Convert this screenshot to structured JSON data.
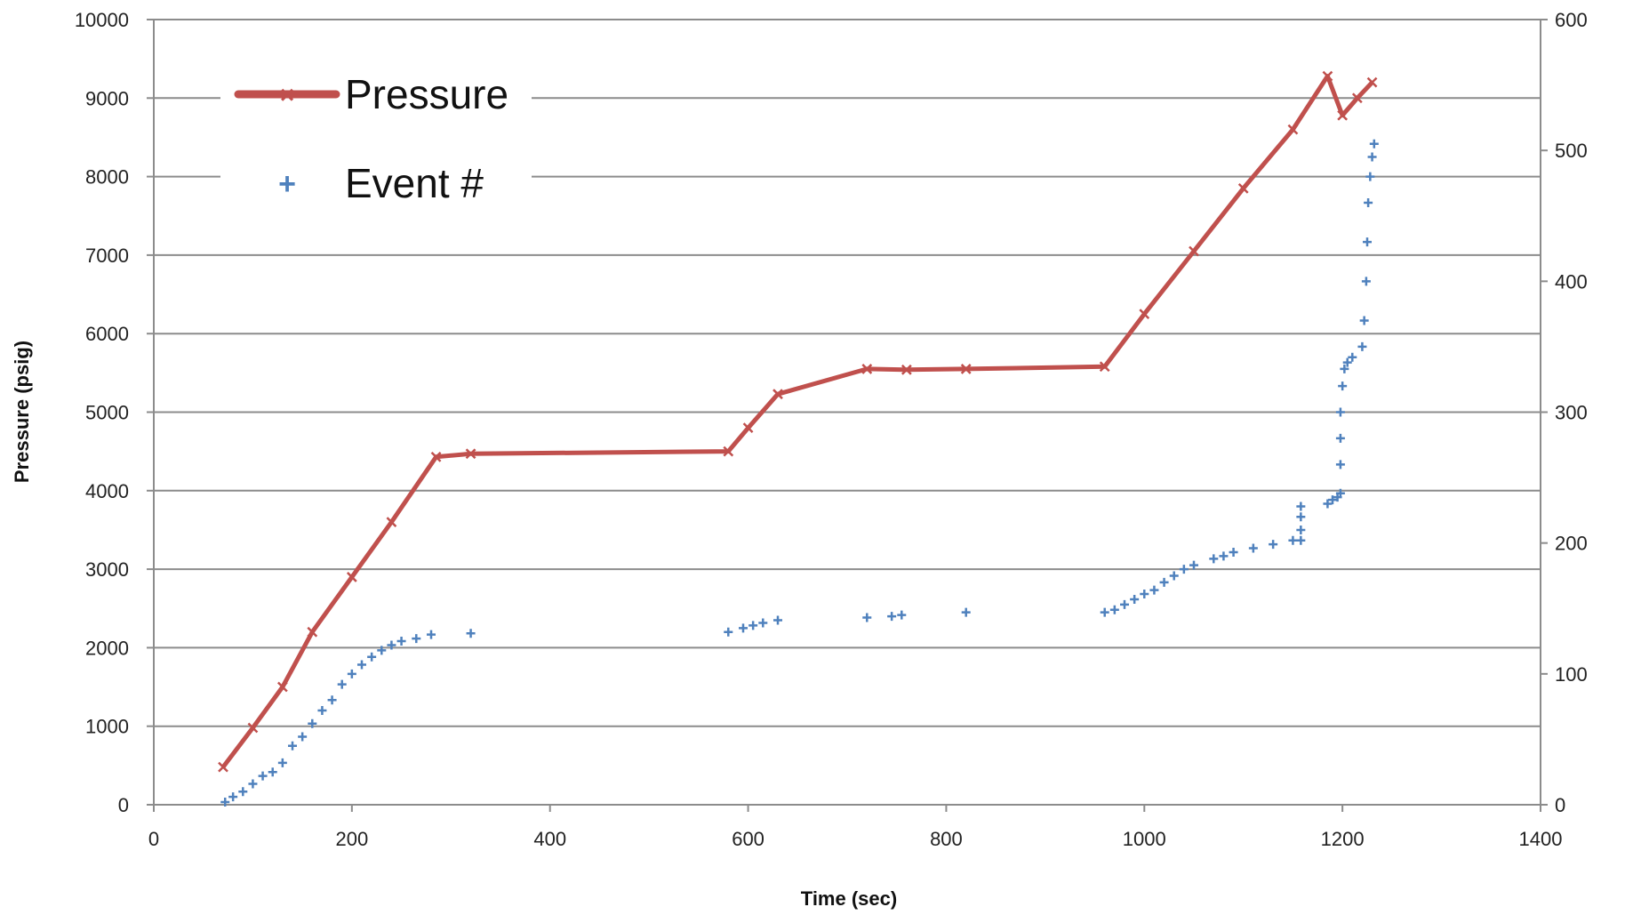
{
  "chart_data": {
    "type": "line",
    "xlabel": "Time (sec)",
    "ylabel": "Pressure (psig)",
    "y2label": "",
    "xlim": [
      0,
      1400
    ],
    "ylim": [
      0,
      10000
    ],
    "y2lim": [
      0,
      600
    ],
    "x_ticks": [
      "0",
      "200",
      "400",
      "600",
      "800",
      "1000",
      "1200",
      "1400"
    ],
    "y_ticks": [
      "0",
      "1000",
      "2000",
      "3000",
      "4000",
      "5000",
      "6000",
      "7000",
      "8000",
      "9000",
      "10000"
    ],
    "y2_ticks": [
      "0",
      "100",
      "200",
      "300",
      "400",
      "500",
      "600"
    ],
    "grid": "horizontal",
    "legend_position": "top-left",
    "series": [
      {
        "name": "Pressure",
        "axis": "left",
        "style": "line-with-x-markers",
        "color": "#c0504d",
        "points": [
          [
            70,
            480
          ],
          [
            100,
            980
          ],
          [
            130,
            1500
          ],
          [
            160,
            2200
          ],
          [
            200,
            2900
          ],
          [
            240,
            3600
          ],
          [
            285,
            4430
          ],
          [
            320,
            4470
          ],
          [
            580,
            4500
          ],
          [
            600,
            4800
          ],
          [
            630,
            5230
          ],
          [
            720,
            5550
          ],
          [
            760,
            5540
          ],
          [
            820,
            5550
          ],
          [
            960,
            5580
          ],
          [
            1000,
            6250
          ],
          [
            1050,
            7050
          ],
          [
            1100,
            7850
          ],
          [
            1150,
            8600
          ],
          [
            1185,
            9280
          ],
          [
            1200,
            8780
          ],
          [
            1215,
            9000
          ],
          [
            1230,
            9200
          ]
        ]
      },
      {
        "name": "Event #",
        "axis": "right",
        "style": "scatter-plus",
        "color": "#4f81bd",
        "points": [
          [
            72,
            2
          ],
          [
            80,
            6
          ],
          [
            90,
            10
          ],
          [
            100,
            16
          ],
          [
            110,
            22
          ],
          [
            120,
            25
          ],
          [
            130,
            32
          ],
          [
            140,
            45
          ],
          [
            150,
            52
          ],
          [
            160,
            62
          ],
          [
            170,
            72
          ],
          [
            180,
            80
          ],
          [
            190,
            92
          ],
          [
            200,
            100
          ],
          [
            210,
            107
          ],
          [
            220,
            113
          ],
          [
            230,
            118
          ],
          [
            240,
            122
          ],
          [
            250,
            125
          ],
          [
            265,
            127
          ],
          [
            280,
            130
          ],
          [
            320,
            131
          ],
          [
            580,
            132
          ],
          [
            595,
            135
          ],
          [
            605,
            137
          ],
          [
            615,
            139
          ],
          [
            630,
            141
          ],
          [
            720,
            143
          ],
          [
            745,
            144
          ],
          [
            755,
            145
          ],
          [
            820,
            147
          ],
          [
            960,
            147
          ],
          [
            970,
            149
          ],
          [
            980,
            153
          ],
          [
            990,
            157
          ],
          [
            1000,
            161
          ],
          [
            1010,
            164
          ],
          [
            1020,
            170
          ],
          [
            1030,
            175
          ],
          [
            1040,
            180
          ],
          [
            1050,
            183
          ],
          [
            1070,
            188
          ],
          [
            1080,
            190
          ],
          [
            1090,
            193
          ],
          [
            1110,
            196
          ],
          [
            1130,
            199
          ],
          [
            1150,
            202
          ],
          [
            1158,
            202
          ],
          [
            1158,
            210
          ],
          [
            1158,
            220
          ],
          [
            1158,
            228
          ],
          [
            1185,
            230
          ],
          [
            1190,
            233
          ],
          [
            1195,
            235
          ],
          [
            1198,
            238
          ],
          [
            1198,
            260
          ],
          [
            1198,
            280
          ],
          [
            1198,
            300
          ],
          [
            1200,
            320
          ],
          [
            1202,
            333
          ],
          [
            1205,
            338
          ],
          [
            1210,
            342
          ],
          [
            1220,
            350
          ],
          [
            1222,
            370
          ],
          [
            1224,
            400
          ],
          [
            1225,
            430
          ],
          [
            1226,
            460
          ],
          [
            1228,
            480
          ],
          [
            1230,
            495
          ],
          [
            1232,
            505
          ]
        ]
      }
    ]
  }
}
